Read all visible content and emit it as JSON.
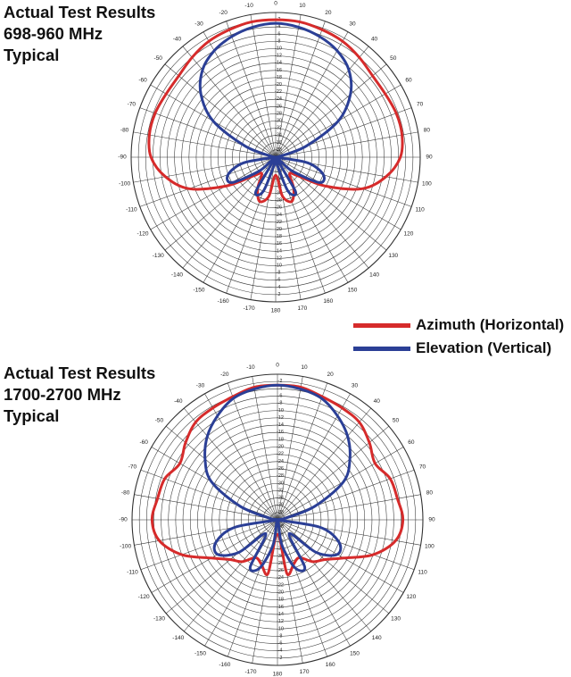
{
  "charts": [
    {
      "title_lines": [
        "Actual Test Results",
        "698-960 MHz",
        "Typical"
      ]
    },
    {
      "title_lines": [
        "Actual Test Results",
        "1700-2700 MHz",
        "Typical"
      ]
    }
  ],
  "legend": [
    {
      "label": "Azimuth (Horizontal)",
      "color": "#d62b2b"
    },
    {
      "label": "Elevation (Vertical)",
      "color": "#2b3f96"
    }
  ],
  "chart_data": [
    {
      "type": "line",
      "title": "Actual Test Results 698-960 MHz Typical",
      "coordinate_system": "polar",
      "angle_tick_labels": [
        "0",
        "10",
        "20",
        "30",
        "40",
        "50",
        "60",
        "70",
        "80",
        "90",
        "100",
        "110",
        "120",
        "130",
        "140",
        "150",
        "160",
        "170",
        "180",
        "-170",
        "-160",
        "-150",
        "-140",
        "-130",
        "-120",
        "-110",
        "-100",
        "-90",
        "-80",
        "-70",
        "-60",
        "-50",
        "-40",
        "-30",
        "-20",
        "-10"
      ],
      "radial_tick_labels": [
        "0",
        "-2",
        "-4",
        "-6",
        "-8",
        "-10",
        "-12",
        "-14",
        "-16",
        "-18",
        "-20",
        "-22",
        "-24",
        "-26",
        "-28",
        "-30",
        "-32",
        "-34",
        "-36",
        "-38",
        "-40"
      ],
      "radial_range_db": [
        -40,
        0
      ],
      "series": [
        {
          "name": "Azimuth (Horizontal)",
          "color": "#d62b2b",
          "angles_deg": [
            0,
            10,
            20,
            30,
            40,
            50,
            60,
            70,
            80,
            90,
            100,
            110,
            120,
            130,
            140,
            150,
            160,
            170,
            180,
            -170,
            -160,
            -150,
            -140,
            -130,
            -120,
            -110,
            -100,
            -90,
            -80,
            -70,
            -60,
            -50,
            -40,
            -30,
            -20,
            -10
          ],
          "gain_db": [
            -2,
            -2,
            -2.5,
            -3,
            -4,
            -5,
            -5,
            -4.5,
            -4.5,
            -5.5,
            -9,
            -14.5,
            -24,
            -32,
            -34,
            -30,
            -27,
            -29,
            -35,
            -29,
            -27,
            -30,
            -34,
            -32,
            -24,
            -14.5,
            -9,
            -5.5,
            -4.5,
            -4.5,
            -5,
            -5,
            -4,
            -3,
            -2.5,
            -2
          ]
        },
        {
          "name": "Elevation (Vertical)",
          "color": "#2b3f96",
          "angles_deg": [
            0,
            10,
            20,
            30,
            40,
            50,
            60,
            70,
            80,
            90,
            100,
            110,
            120,
            130,
            140,
            150,
            160,
            170,
            180,
            -170,
            -160,
            -150,
            -140,
            -130,
            -120,
            -110,
            -100,
            -90,
            -80,
            -70,
            -60,
            -50,
            -40,
            -30,
            -20,
            -10
          ],
          "gain_db": [
            -3,
            -3.5,
            -4.5,
            -6,
            -8.5,
            -13,
            -20,
            -31,
            -39,
            -40,
            -31,
            -26,
            -26,
            -34,
            -39,
            -29,
            -30,
            -38,
            -40,
            -38,
            -30,
            -29,
            -39,
            -34,
            -26,
            -26,
            -31,
            -40,
            -39,
            -31,
            -20,
            -13,
            -8.5,
            -6,
            -4.5,
            -3.5
          ]
        }
      ]
    },
    {
      "type": "line",
      "title": "Actual Test Results 1700-2700 MHz Typical",
      "coordinate_system": "polar",
      "angle_tick_labels": [
        "0",
        "10",
        "20",
        "30",
        "40",
        "50",
        "60",
        "70",
        "80",
        "90",
        "100",
        "110",
        "120",
        "130",
        "140",
        "150",
        "160",
        "170",
        "180",
        "-170",
        "-160",
        "-150",
        "-140",
        "-130",
        "-120",
        "-110",
        "-100",
        "-90",
        "-80",
        "-70",
        "-60",
        "-50",
        "-40",
        "-30",
        "-20",
        "-10"
      ],
      "radial_tick_labels": [
        "0",
        "-2",
        "-4",
        "-6",
        "-8",
        "-10",
        "-12",
        "-14",
        "-16",
        "-18",
        "-20",
        "-22",
        "-24",
        "-26",
        "-28",
        "-30",
        "-32",
        "-34",
        "-36",
        "-38",
        "-40"
      ],
      "radial_range_db": [
        -40,
        0
      ],
      "series": [
        {
          "name": "Azimuth (Horizontal)",
          "color": "#d62b2b",
          "angles_deg": [
            0,
            10,
            20,
            30,
            40,
            50,
            60,
            70,
            80,
            90,
            100,
            110,
            120,
            130,
            140,
            150,
            160,
            170,
            180,
            -170,
            -160,
            -150,
            -140,
            -130,
            -120,
            -110,
            -100,
            -90,
            -80,
            -70,
            -60,
            -50,
            -40,
            -30,
            -20,
            -10
          ],
          "gain_db": [
            -3,
            -3,
            -4,
            -4.5,
            -5,
            -7,
            -9,
            -7,
            -6.5,
            -5.5,
            -7,
            -12,
            -19,
            -23,
            -25,
            -28,
            -27,
            -25,
            -36,
            -25,
            -27,
            -28,
            -25,
            -23,
            -19,
            -12,
            -7,
            -5.5,
            -6.5,
            -7,
            -9,
            -7,
            -5,
            -4.5,
            -4,
            -3
          ]
        },
        {
          "name": "Elevation (Vertical)",
          "color": "#2b3f96",
          "angles_deg": [
            0,
            10,
            20,
            30,
            40,
            50,
            60,
            70,
            80,
            90,
            100,
            110,
            120,
            130,
            140,
            150,
            160,
            170,
            180,
            -170,
            -160,
            -150,
            -140,
            -130,
            -120,
            -110,
            -100,
            -90,
            -80,
            -70,
            -60,
            -50,
            -40,
            -30,
            -20,
            -10
          ],
          "gain_db": [
            -3,
            -3.5,
            -4.5,
            -7,
            -10,
            -14,
            -19,
            -29,
            -38,
            -40,
            -28,
            -22,
            -21,
            -26,
            -35,
            -25,
            -26,
            -33,
            -40,
            -33,
            -26,
            -25,
            -35,
            -26,
            -21,
            -22,
            -28,
            -40,
            -38,
            -29,
            -19,
            -14,
            -10,
            -7,
            -4.5,
            -3.5
          ]
        }
      ]
    }
  ]
}
